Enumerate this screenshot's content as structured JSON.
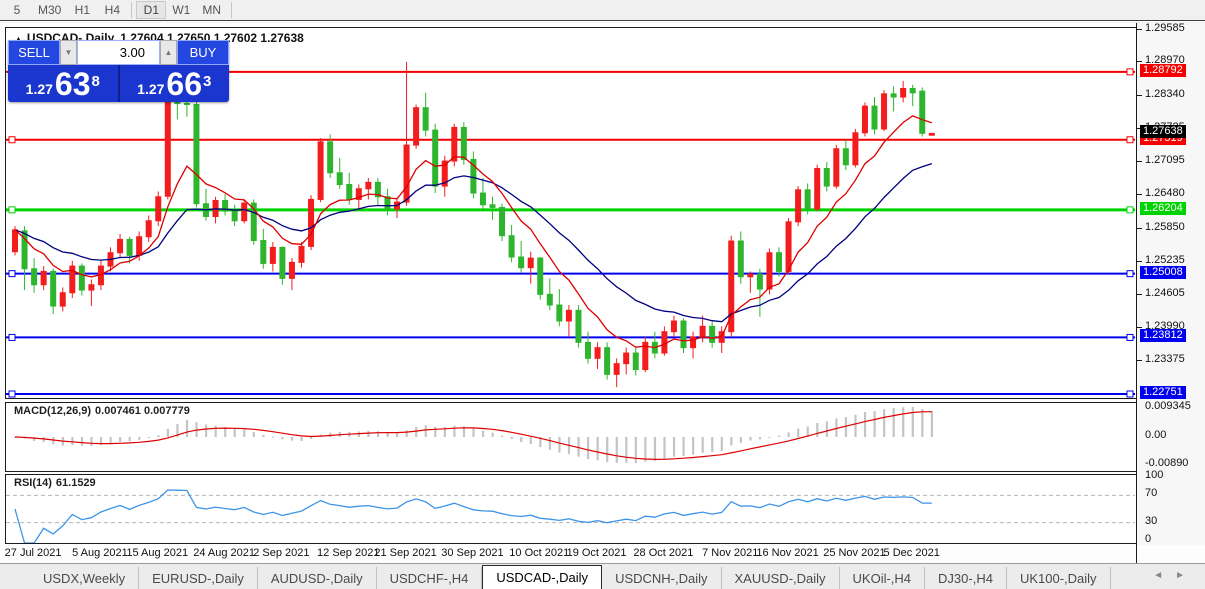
{
  "toolbar": {
    "timeframes": [
      "5",
      "M30",
      "H1",
      "H4",
      "D1",
      "W1",
      "MN"
    ],
    "active": "D1",
    "separators_after": [
      3,
      6
    ]
  },
  "chart": {
    "expand_icon": "▲",
    "title": "USDCAD-,Daily",
    "ohlc_display": "1.27604 1.27650 1.27602 1.27638"
  },
  "trade_panel": {
    "sell_label": "SELL",
    "buy_label": "BUY",
    "volume": "3.00",
    "spin_down_icon": "▼",
    "spin_up_icon": "▲",
    "sell_price": {
      "small": "1.27",
      "big": "63",
      "sup": "8"
    },
    "buy_price": {
      "small": "1.27",
      "big": "66",
      "sup": "3"
    }
  },
  "price_axis": {
    "ticks": [
      "1.29585",
      "1.28970",
      "1.28340",
      "1.27725",
      "1.27095",
      "1.26480",
      "1.25850",
      "1.25235",
      "1.24605",
      "1.23990",
      "1.23375"
    ],
    "current_price": {
      "value": "1.27638",
      "bg": "#000000",
      "fg": "#ffffff"
    }
  },
  "macd_panel": {
    "label": "MACD(12,26,9)",
    "values": "0.007461 0.007779",
    "axis_ticks": [
      "0.009345",
      "0.00",
      "-0.00890"
    ],
    "histogram_color": "#c4c4c4",
    "signal_color": "#e00000"
  },
  "rsi_panel": {
    "label": "RSI(14)",
    "value": "61.1529",
    "axis_ticks": [
      "100",
      "70",
      "30",
      "0"
    ],
    "levels": [
      70,
      30
    ],
    "line_color": "#3d95e8"
  },
  "date_axis": {
    "labels": [
      "27 Jul 2021",
      "5 Aug 2021",
      "15 Aug 2021",
      "24 Aug 2021",
      "2 Sep 2021",
      "12 Sep 2021",
      "21 Sep 2021",
      "30 Sep 2021",
      "10 Oct 2021",
      "19 Oct 2021",
      "28 Oct 2021",
      "7 Nov 2021",
      "16 Nov 2021",
      "25 Nov 2021",
      "5 Dec 2021"
    ],
    "label_bar_index": [
      2,
      9,
      15,
      22,
      28,
      35,
      41,
      48,
      55,
      61,
      68,
      75,
      81,
      88,
      94
    ]
  },
  "tabs": {
    "items": [
      "USDX,Weekly",
      "EURUSD-,Daily",
      "AUDUSD-,Daily",
      "USDCHF-,H4",
      "USDCAD-,Daily",
      "USDCNH-,Daily",
      "XAUUSD-,Daily",
      "UKOil-,H4",
      "DJ30-,H4",
      "UK100-,Daily"
    ],
    "active_index": 4,
    "scroll_left_icon": "◄",
    "scroll_right_icon": "►"
  },
  "chart_data": {
    "type": "candlestick",
    "symbol": "USDCAD",
    "period": "Daily",
    "bull_color": "#f31d1d",
    "bear_color": "#2eb52e",
    "ma_fast_color": "#dd0000",
    "ma_slow_color": "#000080",
    "price_at_pane_top": 1.29596,
    "price_at_pane_bottom": 1.22695,
    "horizontal_lines": [
      {
        "price": 1.28792,
        "color": "#f40000",
        "width": 2
      },
      {
        "price": 1.27519,
        "color": "#f40000",
        "width": 2
      },
      {
        "price": 1.26204,
        "color": "#00d400",
        "width": 3
      },
      {
        "price": 1.25008,
        "color": "#0000f0",
        "width": 2
      },
      {
        "price": 1.23812,
        "color": "#0000f0",
        "width": 2
      },
      {
        "price": 1.22751,
        "color": "#0000f0",
        "width": 2
      }
    ],
    "candles_ohlc": [
      [
        1.2542,
        1.259,
        1.2535,
        1.2583
      ],
      [
        1.2581,
        1.259,
        1.247,
        1.251
      ],
      [
        1.251,
        1.253,
        1.2465,
        1.248
      ],
      [
        1.248,
        1.2515,
        1.247,
        1.2505
      ],
      [
        1.2505,
        1.251,
        1.2425,
        1.244
      ],
      [
        1.244,
        1.2475,
        1.243,
        1.2465
      ],
      [
        1.2465,
        1.2525,
        1.2455,
        1.2515
      ],
      [
        1.2515,
        1.252,
        1.246,
        1.247
      ],
      [
        1.247,
        1.249,
        1.244,
        1.248
      ],
      [
        1.248,
        1.2525,
        1.247,
        1.2515
      ],
      [
        1.2515,
        1.255,
        1.2505,
        1.254
      ],
      [
        1.254,
        1.2575,
        1.253,
        1.2565
      ],
      [
        1.2565,
        1.257,
        1.252,
        1.2535
      ],
      [
        1.2535,
        1.258,
        1.2525,
        1.257
      ],
      [
        1.257,
        1.261,
        1.256,
        1.26
      ],
      [
        1.26,
        1.2655,
        1.259,
        1.2645
      ],
      [
        1.2646,
        1.283,
        1.264,
        1.2822
      ],
      [
        1.2822,
        1.2836,
        1.279,
        1.282
      ],
      [
        1.282,
        1.2828,
        1.2795,
        1.2818
      ],
      [
        1.2818,
        1.2825,
        1.2625,
        1.2632
      ],
      [
        1.2632,
        1.266,
        1.26,
        1.2608
      ],
      [
        1.2608,
        1.2645,
        1.2595,
        1.2638
      ],
      [
        1.2638,
        1.265,
        1.261,
        1.2618
      ],
      [
        1.2618,
        1.263,
        1.259,
        1.26
      ],
      [
        1.26,
        1.264,
        1.2595,
        1.2633
      ],
      [
        1.2633,
        1.264,
        1.2555,
        1.2563
      ],
      [
        1.2563,
        1.2585,
        1.251,
        1.252
      ],
      [
        1.252,
        1.256,
        1.2505,
        1.255
      ],
      [
        1.255,
        1.2552,
        1.248,
        1.2492
      ],
      [
        1.2492,
        1.253,
        1.247,
        1.2522
      ],
      [
        1.2522,
        1.256,
        1.2512,
        1.2552
      ],
      [
        1.2552,
        1.2648,
        1.2545,
        1.264
      ],
      [
        1.264,
        1.2755,
        1.2635,
        1.2748
      ],
      [
        1.2748,
        1.2762,
        1.268,
        1.269
      ],
      [
        1.269,
        1.2718,
        1.266,
        1.2668
      ],
      [
        1.2668,
        1.269,
        1.263,
        1.264
      ],
      [
        1.264,
        1.2668,
        1.262,
        1.266
      ],
      [
        1.266,
        1.268,
        1.264,
        1.2672
      ],
      [
        1.2672,
        1.268,
        1.263,
        1.2645
      ],
      [
        1.2645,
        1.266,
        1.261,
        1.2622
      ],
      [
        1.2622,
        1.264,
        1.2605,
        1.2635
      ],
      [
        1.2635,
        1.2898,
        1.2628,
        1.2742
      ],
      [
        1.2742,
        1.2818,
        1.2735,
        1.2812
      ],
      [
        1.2812,
        1.284,
        1.2758,
        1.277
      ],
      [
        1.277,
        1.2782,
        1.2652,
        1.2665
      ],
      [
        1.2665,
        1.2722,
        1.2645,
        1.2712
      ],
      [
        1.2712,
        1.2782,
        1.2702,
        1.2775
      ],
      [
        1.2775,
        1.2785,
        1.2705,
        1.2715
      ],
      [
        1.2715,
        1.273,
        1.2642,
        1.2652
      ],
      [
        1.2652,
        1.268,
        1.262,
        1.263
      ],
      [
        1.263,
        1.2645,
        1.2602,
        1.2625
      ],
      [
        1.2625,
        1.2632,
        1.2562,
        1.2572
      ],
      [
        1.2572,
        1.2592,
        1.2522,
        1.2532
      ],
      [
        1.2532,
        1.2562,
        1.2502,
        1.2512
      ],
      [
        1.2512,
        1.2542,
        1.2482,
        1.253
      ],
      [
        1.253,
        1.2532,
        1.2452,
        1.2462
      ],
      [
        1.2462,
        1.2492,
        1.2432,
        1.2442
      ],
      [
        1.2442,
        1.2472,
        1.2402,
        1.2412
      ],
      [
        1.2412,
        1.2442,
        1.2382,
        1.2432
      ],
      [
        1.2432,
        1.2442,
        1.2362,
        1.2372
      ],
      [
        1.2372,
        1.2392,
        1.2332,
        1.2342
      ],
      [
        1.2342,
        1.2372,
        1.2322,
        1.2362
      ],
      [
        1.2362,
        1.2372,
        1.2302,
        1.2312
      ],
      [
        1.2312,
        1.2342,
        1.2288,
        1.2332
      ],
      [
        1.2332,
        1.2362,
        1.2312,
        1.2352
      ],
      [
        1.2352,
        1.2362,
        1.231,
        1.2321
      ],
      [
        1.2321,
        1.2382,
        1.2316,
        1.2372
      ],
      [
        1.2372,
        1.2392,
        1.2342,
        1.2352
      ],
      [
        1.2352,
        1.2402,
        1.2347,
        1.2392
      ],
      [
        1.2392,
        1.2422,
        1.2382,
        1.2412
      ],
      [
        1.2412,
        1.2417,
        1.2352,
        1.2362
      ],
      [
        1.2362,
        1.2392,
        1.2342,
        1.2382
      ],
      [
        1.2382,
        1.2422,
        1.2372,
        1.2402
      ],
      [
        1.2402,
        1.2412,
        1.2362,
        1.2372
      ],
      [
        1.2372,
        1.2402,
        1.2352,
        1.2392
      ],
      [
        1.2392,
        1.2572,
        1.2382,
        1.2562
      ],
      [
        1.2562,
        1.258,
        1.2482,
        1.2495
      ],
      [
        1.2495,
        1.2505,
        1.2465,
        1.25
      ],
      [
        1.25,
        1.251,
        1.242,
        1.2472
      ],
      [
        1.2472,
        1.2548,
        1.2462,
        1.254
      ],
      [
        1.254,
        1.255,
        1.2495,
        1.2505
      ],
      [
        1.2505,
        1.2605,
        1.25,
        1.2598
      ],
      [
        1.2598,
        1.2665,
        1.259,
        1.2658
      ],
      [
        1.2658,
        1.267,
        1.2612,
        1.2622
      ],
      [
        1.2622,
        1.2705,
        1.2618,
        1.2698
      ],
      [
        1.2698,
        1.271,
        1.2655,
        1.2665
      ],
      [
        1.2665,
        1.2742,
        1.266,
        1.2735
      ],
      [
        1.2735,
        1.2752,
        1.2695,
        1.2705
      ],
      [
        1.2705,
        1.2772,
        1.27,
        1.2765
      ],
      [
        1.2765,
        1.2822,
        1.2758,
        1.2815
      ],
      [
        1.2815,
        1.2832,
        1.2762,
        1.2772
      ],
      [
        1.2772,
        1.2845,
        1.2768,
        1.2838
      ],
      [
        1.2838,
        1.2852,
        1.2805,
        1.2832
      ],
      [
        1.2832,
        1.2862,
        1.2822,
        1.2848
      ],
      [
        1.2848,
        1.2855,
        1.2815,
        1.284
      ],
      [
        1.2843,
        1.285,
        1.2758,
        1.2764
      ],
      [
        1.27604,
        1.2765,
        1.27602,
        1.27638
      ]
    ]
  }
}
